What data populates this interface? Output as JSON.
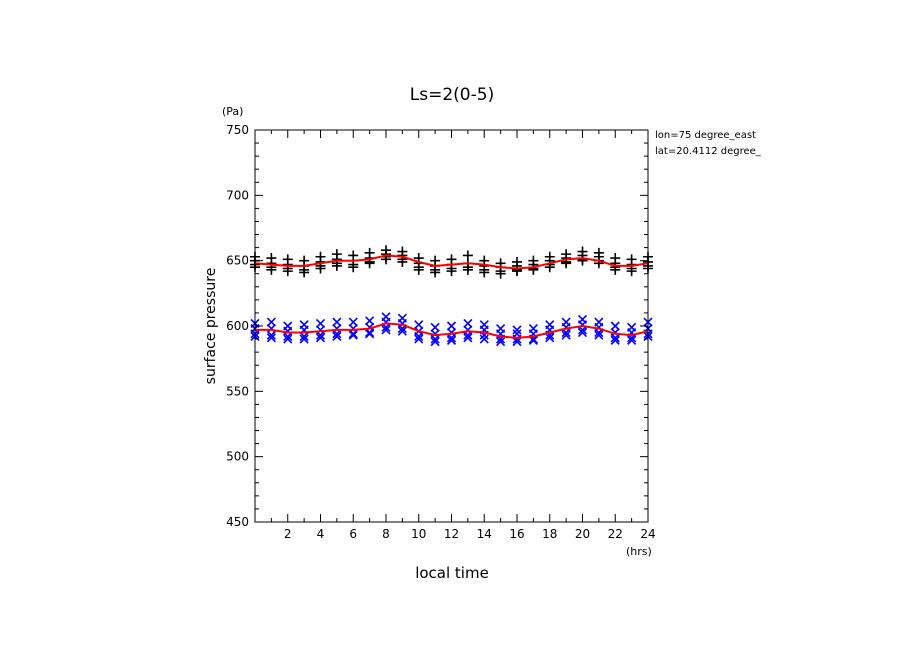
{
  "chart_data": {
    "type": "scatter",
    "title": "Ls=2(0-5)",
    "ylabel": "surface pressure",
    "yunit": "(Pa)",
    "xlabel": "local time",
    "xunit": "(hrs)",
    "xlim": [
      0,
      24
    ],
    "ylim": [
      450,
      750
    ],
    "xticks": [
      2,
      4,
      6,
      8,
      10,
      12,
      14,
      16,
      18,
      20,
      22,
      24
    ],
    "yticks": [
      450,
      500,
      550,
      600,
      650,
      700,
      750
    ],
    "annotation_lines": [
      "lon=75 degree_east",
      "lat=20.4112 degree_"
    ],
    "colors": {
      "upper_markers": "#000000",
      "lower_markers": "#0000ff",
      "fit_line": "#ff0000"
    },
    "series": [
      {
        "marker": "plus",
        "color": "#000000",
        "x": [
          0,
          0,
          0,
          0,
          1,
          1,
          1,
          1,
          2,
          2,
          2,
          2,
          3,
          3,
          3,
          3,
          4,
          4,
          4,
          4,
          5,
          5,
          5,
          5,
          6,
          6,
          6,
          6,
          7,
          7,
          7,
          7,
          8,
          8,
          8,
          8,
          9,
          9,
          9,
          9,
          10,
          10,
          10,
          10,
          11,
          11,
          11,
          11,
          12,
          12,
          12,
          12,
          13,
          13,
          13,
          13,
          14,
          14,
          14,
          14,
          15,
          15,
          15,
          15,
          16,
          16,
          16,
          16,
          17,
          17,
          17,
          17,
          18,
          18,
          18,
          18,
          19,
          19,
          19,
          19,
          20,
          20,
          20,
          20,
          21,
          21,
          21,
          21,
          22,
          22,
          22,
          22,
          23,
          23,
          23,
          23,
          24,
          24,
          24,
          24
        ],
        "y": [
          650,
          647,
          653,
          645,
          648,
          645,
          652,
          643,
          647,
          644,
          651,
          642,
          646,
          643,
          650,
          641,
          649,
          646,
          653,
          644,
          651,
          648,
          655,
          646,
          650,
          647,
          654,
          645,
          652,
          649,
          656,
          648,
          655,
          653,
          658,
          651,
          654,
          651,
          657,
          649,
          648,
          645,
          652,
          643,
          646,
          643,
          650,
          641,
          647,
          644,
          651,
          642,
          648,
          645,
          654,
          643,
          646,
          643,
          650,
          641,
          645,
          642,
          648,
          640,
          646,
          643,
          649,
          642,
          647,
          644,
          650,
          643,
          650,
          647,
          653,
          645,
          652,
          649,
          655,
          648,
          654,
          651,
          657,
          650,
          653,
          650,
          656,
          648,
          648,
          645,
          652,
          643,
          647,
          644,
          651,
          642,
          649,
          646,
          653,
          644
        ]
      },
      {
        "marker": "x",
        "color": "#0000ff",
        "x": [
          0,
          0,
          0,
          0,
          1,
          1,
          1,
          1,
          2,
          2,
          2,
          2,
          3,
          3,
          3,
          3,
          4,
          4,
          4,
          4,
          5,
          5,
          5,
          5,
          6,
          6,
          6,
          6,
          7,
          7,
          7,
          7,
          8,
          8,
          8,
          8,
          9,
          9,
          9,
          9,
          10,
          10,
          10,
          10,
          11,
          11,
          11,
          11,
          12,
          12,
          12,
          12,
          13,
          13,
          13,
          13,
          14,
          14,
          14,
          14,
          15,
          15,
          15,
          15,
          16,
          16,
          16,
          16,
          17,
          17,
          17,
          17,
          18,
          18,
          18,
          18,
          19,
          19,
          19,
          19,
          20,
          20,
          20,
          20,
          21,
          21,
          21,
          21,
          22,
          22,
          22,
          22,
          23,
          23,
          23,
          23,
          24,
          24,
          24,
          24
        ],
        "y": [
          598,
          594,
          602,
          592,
          598,
          593,
          603,
          591,
          596,
          592,
          600,
          590,
          597,
          592,
          601,
          590,
          597,
          593,
          602,
          591,
          598,
          594,
          603,
          592,
          598,
          594,
          603,
          593,
          599,
          595,
          604,
          594,
          603,
          599,
          607,
          597,
          602,
          598,
          606,
          596,
          596,
          592,
          601,
          590,
          594,
          590,
          599,
          588,
          595,
          591,
          600,
          589,
          597,
          593,
          602,
          591,
          597,
          593,
          601,
          590,
          594,
          590,
          598,
          588,
          594,
          590,
          597,
          588,
          594,
          590,
          598,
          589,
          597,
          593,
          601,
          591,
          599,
          595,
          603,
          593,
          601,
          597,
          605,
          595,
          599,
          595,
          603,
          593,
          595,
          591,
          600,
          589,
          595,
          591,
          599,
          589,
          598,
          594,
          603,
          592
        ]
      }
    ],
    "fit_lines": [
      {
        "color": "#ff0000",
        "x": [
          0,
          1,
          2,
          3,
          4,
          5,
          6,
          7,
          8,
          9,
          10,
          11,
          12,
          13,
          14,
          15,
          16,
          17,
          18,
          19,
          20,
          21,
          22,
          23,
          24
        ],
        "y": [
          648,
          647,
          646,
          646,
          648,
          650,
          650,
          651,
          654,
          653,
          649,
          646,
          647,
          648,
          647,
          645,
          644,
          645,
          648,
          651,
          652,
          650,
          646,
          646,
          648
        ]
      },
      {
        "color": "#ff0000",
        "x": [
          0,
          1,
          2,
          3,
          4,
          5,
          6,
          7,
          8,
          9,
          10,
          11,
          12,
          13,
          14,
          15,
          16,
          17,
          18,
          19,
          20,
          21,
          22,
          23,
          24
        ],
        "y": [
          597,
          597,
          595,
          595,
          596,
          597,
          597,
          598,
          602,
          601,
          596,
          593,
          594,
          596,
          595,
          592,
          591,
          592,
          595,
          598,
          600,
          598,
          594,
          593,
          596
        ]
      }
    ]
  }
}
